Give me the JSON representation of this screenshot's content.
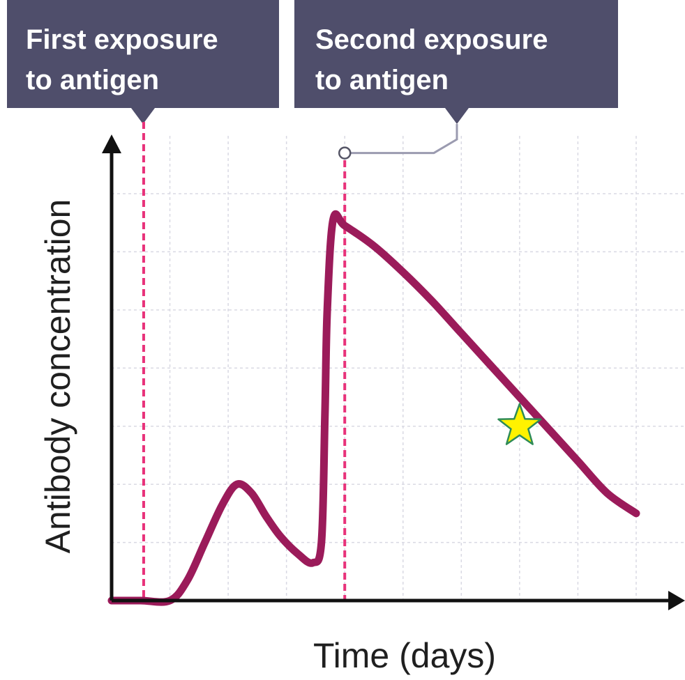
{
  "chart_data": {
    "type": "line",
    "title": "",
    "xlabel": "Time (days)",
    "ylabel": "Antibody concentration",
    "grid": true,
    "legend": "none",
    "x_ticks_labeled": false,
    "y_ticks_labeled": false,
    "xlim": [
      0,
      9
    ],
    "ylim": [
      0,
      7
    ],
    "series": [
      {
        "values_x": [
          0,
          0.5,
          1.0,
          1.3,
          1.6,
          1.9,
          2.15,
          2.4,
          2.65,
          2.9,
          3.2,
          3.45,
          3.6,
          3.66,
          3.7,
          3.8,
          4.0,
          4.5,
          5.0,
          5.5,
          6.0,
          6.5,
          7.0,
          7.5,
          8.0,
          8.5,
          9.0
        ],
        "values_y": [
          0,
          0,
          0,
          0.35,
          1.0,
          1.65,
          2.0,
          1.85,
          1.45,
          1.1,
          0.8,
          0.65,
          1.0,
          3.2,
          5.0,
          6.55,
          6.45,
          6.1,
          5.65,
          5.15,
          4.6,
          4.05,
          3.5,
          2.95,
          2.4,
          1.85,
          1.5
        ]
      }
    ],
    "annotations": [
      {
        "text_lines": [
          "First exposure",
          "to antigen"
        ],
        "x": 0.55
      },
      {
        "text_lines": [
          "Second exposure",
          "to antigen"
        ],
        "x": 4.0,
        "marker_y": 7.7
      }
    ],
    "colors": {
      "line": "#9b1b5a",
      "exposure_line": "#e8327a",
      "grid": "#d9d9e3",
      "callout_bg": "#4f4e6b",
      "callout_text": "#ffffff",
      "connector": "#9b9bb0",
      "axis": "#111111",
      "star_fill": "#fff200",
      "star_stroke": "#2e8b57"
    },
    "star_marker": {
      "x": 7.0,
      "y": 3.0
    }
  }
}
